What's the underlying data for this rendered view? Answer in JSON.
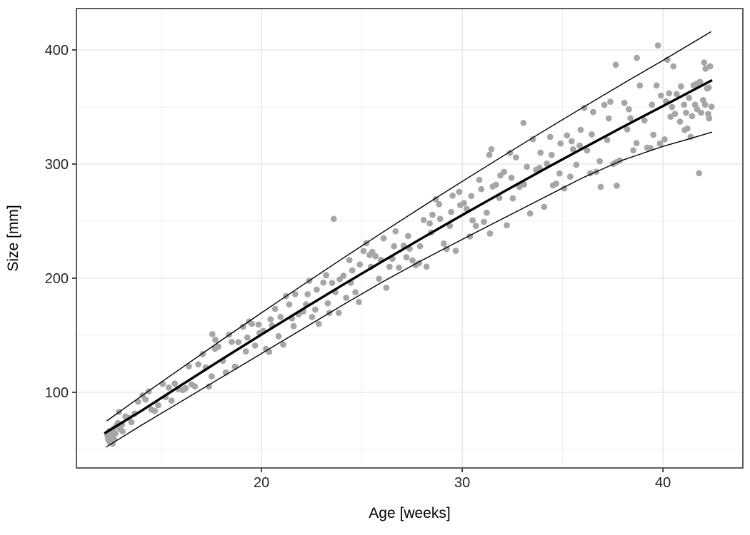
{
  "chart_data": {
    "type": "scatter",
    "title": "",
    "xlabel": "Age [weeks]",
    "ylabel": "Size [mm]",
    "xlim": [
      10.78,
      43.98
    ],
    "ylim": [
      33.75,
      436.25
    ],
    "x_ticks_major": [
      20,
      30,
      40
    ],
    "x_ticks_minor": [
      15,
      25,
      35
    ],
    "y_ticks_major": [
      100,
      200,
      300,
      400
    ],
    "y_ticks_minor": [
      50,
      150,
      250,
      350
    ],
    "grid": "on",
    "legend": "none",
    "colors": {
      "point": "#a6a6a6",
      "line": "#000000",
      "grid_major": "#e3e3e3",
      "grid_minor": "#f0f0f0",
      "panel_border": "#4d4d4d",
      "tick_mark": "#333333",
      "background": "#ffffff"
    },
    "series": [
      {
        "name": "observations",
        "type": "scatter",
        "color": "#a6a6a6",
        "point_radius": 4.4,
        "points": [
          [
            12.32,
            63
          ],
          [
            12.38,
            58
          ],
          [
            12.42,
            66
          ],
          [
            12.5,
            61
          ],
          [
            12.58,
            55
          ],
          [
            12.62,
            68
          ],
          [
            12.72,
            64
          ],
          [
            12.85,
            73
          ],
          [
            12.95,
            68
          ],
          [
            13.05,
            72
          ],
          [
            12.35,
            60.6
          ],
          [
            12.45,
            56.5
          ],
          [
            12.55,
            65.6
          ],
          [
            12.65,
            58.8
          ],
          [
            12.75,
            70.5
          ],
          [
            12.9,
            82.8
          ],
          [
            13.08,
            65.9
          ],
          [
            13.22,
            78.9
          ],
          [
            13.38,
            77.8
          ],
          [
            13.52,
            73.8
          ],
          [
            13.68,
            81.3
          ],
          [
            13.85,
            91.8
          ],
          [
            14.08,
            97.2
          ],
          [
            14.22,
            93.7
          ],
          [
            14.38,
            100.8
          ],
          [
            14.52,
            84.9
          ],
          [
            14.68,
            83.7
          ],
          [
            14.85,
            88.7
          ],
          [
            15.08,
            107.4
          ],
          [
            15.22,
            95.9
          ],
          [
            15.38,
            104.2
          ],
          [
            15.52,
            92.7
          ],
          [
            15.68,
            107.6
          ],
          [
            15.85,
            103
          ],
          [
            16.08,
            102
          ],
          [
            16.22,
            103.6
          ],
          [
            16.38,
            122.8
          ],
          [
            16.52,
            106.9
          ],
          [
            16.68,
            105.2
          ],
          [
            16.85,
            124.5
          ],
          [
            17.08,
            133.5
          ],
          [
            17.22,
            121.9
          ],
          [
            17.38,
            105.1
          ],
          [
            17.52,
            114
          ],
          [
            17.68,
            138.1
          ],
          [
            17.85,
            140
          ],
          [
            18.08,
            127.6
          ],
          [
            18.22,
            117.4
          ],
          [
            18.38,
            150.5
          ],
          [
            18.52,
            144.2
          ],
          [
            18.68,
            122.5
          ],
          [
            18.85,
            144
          ],
          [
            19.08,
            157.5
          ],
          [
            19.22,
            135.9
          ],
          [
            19.38,
            162
          ],
          [
            19.52,
            160
          ],
          [
            19.68,
            141
          ],
          [
            19.85,
            159.4
          ],
          [
            20.08,
            153.8
          ],
          [
            20.22,
            138
          ],
          [
            20.38,
            135.4
          ],
          [
            20.52,
            158.5
          ],
          [
            20.68,
            173.1
          ],
          [
            20.85,
            149.1
          ],
          [
            21.08,
            141.9
          ],
          [
            21.22,
            184.4
          ],
          [
            21.38,
            177
          ],
          [
            21.52,
            164.8
          ],
          [
            21.68,
            186
          ],
          [
            21.85,
            168.4
          ],
          [
            22.08,
            170.8
          ],
          [
            22.22,
            177.1
          ],
          [
            22.38,
            197.8
          ],
          [
            22.52,
            166
          ],
          [
            22.68,
            172.5
          ],
          [
            22.85,
            160
          ],
          [
            23.08,
            196.2
          ],
          [
            23.22,
            202.7
          ],
          [
            23.38,
            169.6
          ],
          [
            23.52,
            195.9
          ],
          [
            23.68,
            187.7
          ],
          [
            23.85,
            169.7
          ],
          [
            24.08,
            202.2
          ],
          [
            24.22,
            182.9
          ],
          [
            24.38,
            215.8
          ],
          [
            24.52,
            206.9
          ],
          [
            24.68,
            187.7
          ],
          [
            24.85,
            179.1
          ],
          [
            25.08,
            223.8
          ],
          [
            25.22,
            230.7
          ],
          [
            25.38,
            220.3
          ],
          [
            25.52,
            223
          ],
          [
            25.68,
            219.3
          ],
          [
            25.85,
            199.5
          ],
          [
            26.08,
            234.9
          ],
          [
            26.22,
            191.6
          ],
          [
            26.38,
            210
          ],
          [
            26.52,
            217.1
          ],
          [
            26.68,
            241.1
          ],
          [
            26.85,
            209.3
          ],
          [
            27.08,
            228.5
          ],
          [
            27.22,
            218.3
          ],
          [
            27.38,
            225.8
          ],
          [
            27.52,
            215.6
          ],
          [
            27.68,
            211.4
          ],
          [
            27.85,
            213.2
          ],
          [
            28.08,
            251
          ],
          [
            28.22,
            210.1
          ],
          [
            28.38,
            248
          ],
          [
            28.52,
            255.5
          ],
          [
            28.68,
            269.2
          ],
          [
            28.85,
            264.8
          ],
          [
            29.08,
            230.4
          ],
          [
            29.22,
            225.6
          ],
          [
            29.38,
            245.9
          ],
          [
            29.52,
            272.3
          ],
          [
            29.68,
            224
          ],
          [
            29.85,
            275.6
          ],
          [
            30.08,
            265.8
          ],
          [
            30.22,
            260.7
          ],
          [
            30.38,
            236.6
          ],
          [
            30.52,
            250.7
          ],
          [
            30.68,
            245.9
          ],
          [
            30.85,
            286.2
          ],
          [
            31.08,
            249.4
          ],
          [
            31.22,
            257.4
          ],
          [
            31.38,
            239.1
          ],
          [
            31.52,
            280.3
          ],
          [
            31.68,
            281.9
          ],
          [
            31.85,
            270.3
          ],
          [
            32.08,
            293.1
          ],
          [
            32.22,
            246.3
          ],
          [
            32.38,
            309.8
          ],
          [
            32.52,
            269.9
          ],
          [
            32.68,
            305.9
          ],
          [
            32.85,
            280
          ],
          [
            33.08,
            282.2
          ],
          [
            33.22,
            297.6
          ],
          [
            33.38,
            256.7
          ],
          [
            33.52,
            321.8
          ],
          [
            33.68,
            295
          ],
          [
            33.85,
            296.6
          ],
          [
            34.08,
            262.5
          ],
          [
            34.22,
            300.4
          ],
          [
            34.38,
            323.8
          ],
          [
            34.52,
            281.3
          ],
          [
            34.68,
            282.8
          ],
          [
            34.85,
            291.8
          ],
          [
            35.08,
            278.7
          ],
          [
            35.22,
            325.1
          ],
          [
            35.38,
            289
          ],
          [
            35.52,
            312.9
          ],
          [
            35.68,
            299.4
          ],
          [
            35.85,
            316.1
          ],
          [
            36.08,
            349.2
          ],
          [
            36.22,
            311.9
          ],
          [
            36.38,
            292
          ],
          [
            36.52,
            345.6
          ],
          [
            36.68,
            293.2
          ],
          [
            36.85,
            302.5
          ],
          [
            37.08,
            351.8
          ],
          [
            37.22,
            321.2
          ],
          [
            37.38,
            354.6
          ],
          [
            37.52,
            300.1
          ],
          [
            37.68,
            301.6
          ],
          [
            37.85,
            303.2
          ],
          [
            38.08,
            353.6
          ],
          [
            38.22,
            330.4
          ],
          [
            38.38,
            340.1
          ],
          [
            38.52,
            312
          ],
          [
            38.68,
            318.4
          ],
          [
            38.85,
            368.9
          ],
          [
            39.08,
            338.2
          ],
          [
            39.22,
            314.4
          ],
          [
            39.38,
            314
          ],
          [
            39.52,
            325.6
          ],
          [
            39.68,
            368.9
          ],
          [
            39.85,
            318
          ],
          [
            40.08,
            321.6
          ],
          [
            40.22,
            391.4
          ],
          [
            40.38,
            341.5
          ],
          [
            40.52,
            385.6
          ],
          [
            40.68,
            361.3
          ],
          [
            40.85,
            337.2
          ],
          [
            41.08,
            329.8
          ],
          [
            41.22,
            331.1
          ],
          [
            41.38,
            323.8
          ],
          [
            41.52,
            369
          ],
          [
            41.68,
            370.5
          ],
          [
            41.85,
            372
          ],
          [
            42.05,
            389
          ],
          [
            42.12,
            383.6
          ],
          [
            42.2,
            366.3
          ],
          [
            42.28,
            367
          ],
          [
            42.35,
            385.6
          ],
          [
            42.42,
            350.2
          ],
          [
            40.15,
            355
          ],
          [
            40.3,
            362
          ],
          [
            40.45,
            350
          ],
          [
            40.6,
            344
          ],
          [
            40.9,
            368
          ],
          [
            41.05,
            352
          ],
          [
            41.15,
            345
          ],
          [
            41.3,
            358
          ],
          [
            41.45,
            342
          ],
          [
            41.6,
            352
          ],
          [
            41.7,
            348
          ],
          [
            41.9,
            345
          ],
          [
            42.0,
            356
          ],
          [
            42.1,
            352
          ],
          [
            42.25,
            344
          ],
          [
            42.3,
            340
          ],
          [
            19.3,
            148
          ],
          [
            19.9,
            152
          ],
          [
            20.45,
            164
          ],
          [
            20.95,
            166
          ],
          [
            21.6,
            158
          ],
          [
            22.3,
            186
          ],
          [
            22.75,
            190
          ],
          [
            23.3,
            178
          ],
          [
            23.9,
            199
          ],
          [
            24.45,
            196
          ],
          [
            24.9,
            212
          ],
          [
            25.45,
            210
          ],
          [
            25.95,
            216
          ],
          [
            26.6,
            228
          ],
          [
            27.3,
            237
          ],
          [
            27.9,
            228
          ],
          [
            28.45,
            240
          ],
          [
            28.9,
            252
          ],
          [
            29.45,
            258
          ],
          [
            29.9,
            264
          ],
          [
            30.45,
            272
          ],
          [
            30.95,
            278
          ],
          [
            31.9,
            290
          ],
          [
            32.45,
            288
          ],
          [
            33.9,
            310
          ],
          [
            34.45,
            308
          ],
          [
            34.9,
            318
          ],
          [
            35.45,
            320
          ],
          [
            35.9,
            330
          ],
          [
            36.45,
            326
          ],
          [
            37.3,
            340
          ],
          [
            38.3,
            348
          ],
          [
            39.45,
            352
          ],
          [
            39.9,
            360
          ],
          [
            17.55,
            151
          ],
          [
            17.7,
            146
          ],
          [
            23.6,
            252
          ],
          [
            31.35,
            308
          ],
          [
            31.45,
            313
          ],
          [
            33.05,
            336
          ],
          [
            37.65,
            387
          ],
          [
            38.7,
            393
          ],
          [
            39.75,
            404
          ],
          [
            41.8,
            292
          ],
          [
            36.9,
            280
          ],
          [
            37.7,
            281
          ]
        ]
      },
      {
        "name": "median-line",
        "type": "line",
        "color": "#000000",
        "width": 3.4,
        "points": [
          [
            12.17,
            64
          ],
          [
            14,
            83.6
          ],
          [
            16,
            106.3
          ],
          [
            18,
            128.7
          ],
          [
            20,
            150.7
          ],
          [
            22,
            172.3
          ],
          [
            24,
            193.6
          ],
          [
            26,
            214.5
          ],
          [
            28,
            235.1
          ],
          [
            30,
            255.3
          ],
          [
            32,
            275.1
          ],
          [
            34,
            294.6
          ],
          [
            36,
            313.7
          ],
          [
            38,
            332.5
          ],
          [
            40,
            350.9
          ],
          [
            42.45,
            373.5
          ]
        ]
      },
      {
        "name": "upper-band-line",
        "type": "line",
        "color": "#000000",
        "width": 1.4,
        "points": [
          [
            12.3,
            75
          ],
          [
            14,
            96.5
          ],
          [
            16,
            121.1
          ],
          [
            18,
            145.6
          ],
          [
            20,
            169.7
          ],
          [
            22,
            193.4
          ],
          [
            24,
            216.8
          ],
          [
            26,
            239.8
          ],
          [
            28,
            262.5
          ],
          [
            30,
            284.8
          ],
          [
            32,
            306.7
          ],
          [
            34,
            328.3
          ],
          [
            36,
            349.5
          ],
          [
            38,
            370.4
          ],
          [
            40,
            390.9
          ],
          [
            42.4,
            416
          ]
        ]
      },
      {
        "name": "lower-band-line",
        "type": "line",
        "color": "#000000",
        "width": 1.4,
        "points": [
          [
            12.25,
            52
          ],
          [
            14,
            71
          ],
          [
            16,
            92
          ],
          [
            18,
            113
          ],
          [
            20,
            134
          ],
          [
            22,
            155
          ],
          [
            24,
            176
          ],
          [
            26,
            196.5
          ],
          [
            28,
            215.7
          ],
          [
            30,
            234
          ],
          [
            32,
            252
          ],
          [
            34,
            270
          ],
          [
            36,
            288
          ],
          [
            38,
            303.5
          ],
          [
            40,
            315.5
          ],
          [
            41.2,
            321.5
          ],
          [
            42.45,
            328
          ]
        ]
      }
    ]
  }
}
